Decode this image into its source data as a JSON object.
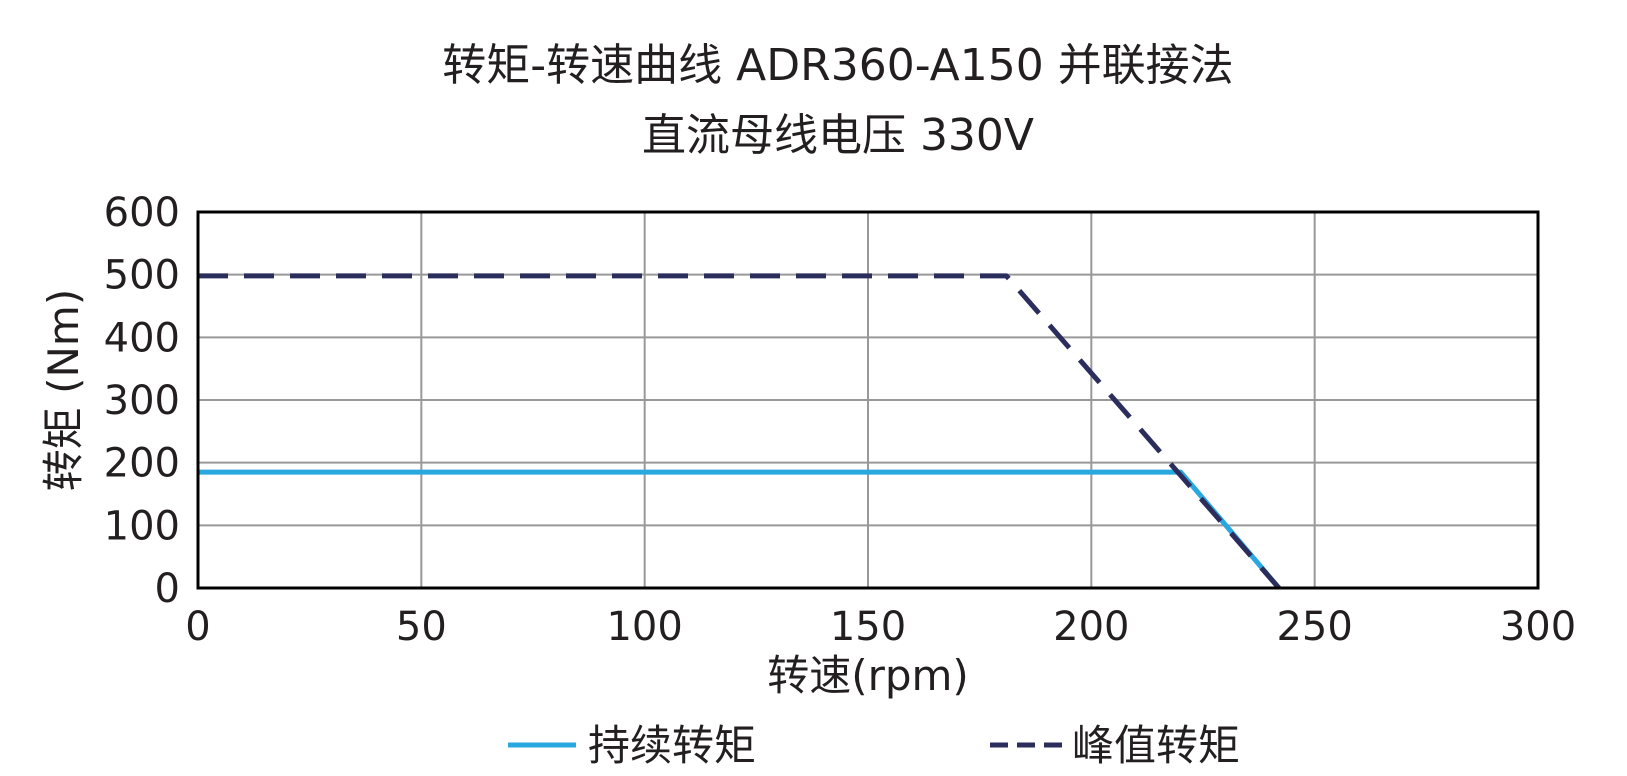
{
  "chart_data": {
    "type": "line",
    "title": "转矩-转速曲线 ADR360-A150 并联接法",
    "subtitle": "直流母线电压 330V",
    "xlabel": "转速(rpm)",
    "ylabel": "转矩 (Nm)",
    "xlim": [
      0,
      300
    ],
    "ylim": [
      0,
      600
    ],
    "x_ticks": [
      "0",
      "50",
      "100",
      "150",
      "200",
      "250",
      "300"
    ],
    "y_ticks": [
      "0",
      "100",
      "200",
      "300",
      "400",
      "500",
      "600"
    ],
    "grid": true,
    "legend_position": "bottom",
    "series": [
      {
        "name": "持续转矩",
        "color": "#29a8e0",
        "style": "solid",
        "points": [
          [
            0,
            185
          ],
          [
            220,
            185
          ],
          [
            242,
            0
          ]
        ]
      },
      {
        "name": "峰值转矩",
        "color": "#2b2d5c",
        "style": "dashed",
        "points": [
          [
            0,
            498
          ],
          [
            181,
            498
          ],
          [
            242,
            0
          ]
        ]
      }
    ]
  }
}
